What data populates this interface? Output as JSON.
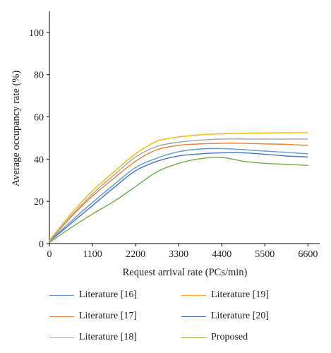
{
  "chart_data": {
    "type": "line",
    "title": "",
    "xlabel": "Request arrival rate (PCs/min)",
    "ylabel": "Average occupancy rate (%)",
    "xlim": [
      0,
      6900
    ],
    "ylim": [
      0,
      110
    ],
    "x_ticks": [
      0,
      1100,
      2200,
      3300,
      4400,
      5500,
      6600
    ],
    "y_ticks": [
      0,
      20,
      40,
      60,
      80,
      100
    ],
    "grid": false,
    "legend_position": "bottom",
    "series": [
      {
        "name": "Literature [16]",
        "color": "#5b9bd5",
        "x": [
          0,
          550,
          1100,
          1650,
          2200,
          2750,
          3300,
          3850,
          4400,
          4950,
          5500,
          6050,
          6600
        ],
        "y": [
          1,
          10.5,
          19.5,
          28,
          36,
          40.5,
          43.5,
          44.8,
          45,
          44.5,
          43.8,
          43.2,
          42.5
        ]
      },
      {
        "name": "Literature [19]",
        "color": "#f5b800",
        "x": [
          0,
          550,
          1100,
          1650,
          2200,
          2750,
          3300,
          3850,
          4400,
          4950,
          5500,
          6050,
          6600
        ],
        "y": [
          1.5,
          14,
          25,
          34,
          42.5,
          48.5,
          50.5,
          51.5,
          52,
          52.3,
          52.4,
          52.5,
          52.5
        ]
      },
      {
        "name": "Literature [17]",
        "color": "#ed7d31",
        "x": [
          0,
          550,
          1100,
          1650,
          2200,
          2750,
          3300,
          3850,
          4400,
          4950,
          5500,
          6050,
          6600
        ],
        "y": [
          1,
          12.5,
          22.5,
          31,
          39,
          44.5,
          46.5,
          47.2,
          47.5,
          47.5,
          47.2,
          47,
          46.5
        ]
      },
      {
        "name": "Literature [20]",
        "color": "#4472c4",
        "x": [
          0,
          550,
          1100,
          1650,
          2200,
          2750,
          3300,
          3850,
          4400,
          4950,
          5500,
          6050,
          6600
        ],
        "y": [
          1,
          9.5,
          18,
          26.5,
          34.5,
          39,
          41.5,
          42.5,
          43,
          43,
          42.3,
          41.5,
          41
        ]
      },
      {
        "name": "Literature [18]",
        "color": "#a5a5a5",
        "x": [
          0,
          550,
          1100,
          1650,
          2200,
          2750,
          3300,
          3850,
          4400,
          4950,
          5500,
          6050,
          6600
        ],
        "y": [
          1,
          13,
          23.5,
          32.5,
          41,
          46,
          48,
          49,
          49.5,
          49.5,
          49.5,
          49.5,
          49.5
        ]
      },
      {
        "name": "Proposed",
        "color": "#70ad47",
        "x": [
          0,
          550,
          1100,
          1650,
          2200,
          2750,
          3300,
          3850,
          4400,
          4950,
          5500,
          6050,
          6600
        ],
        "y": [
          0.5,
          7.5,
          14,
          20,
          27,
          34,
          38,
          40.2,
          40.8,
          39,
          38,
          37.5,
          37
        ]
      }
    ]
  }
}
